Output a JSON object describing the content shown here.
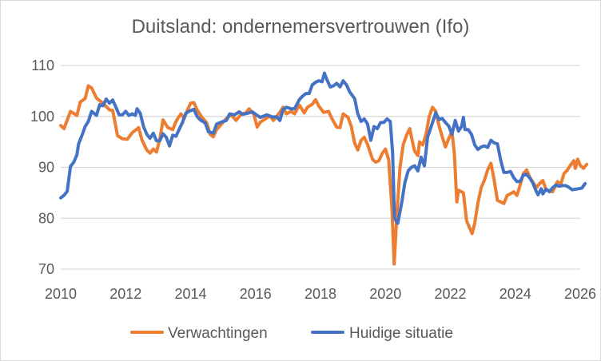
{
  "chart_data": {
    "type": "line",
    "title": "Duitsland: ondernemersvertrouwen (Ifo)",
    "xlabel": "",
    "ylabel": "",
    "xlim": [
      2010,
      2026
    ],
    "ylim": [
      70,
      110
    ],
    "x_ticks": [
      "2010",
      "2012",
      "2014",
      "2016",
      "2018",
      "2020",
      "2022",
      "2024",
      "2026"
    ],
    "y_ticks": [
      "70",
      "80",
      "90",
      "100",
      "110"
    ],
    "grid": "horizontal",
    "legend": "bottom",
    "series": [
      {
        "name": "Verwachtingen",
        "color": "#ED7D31",
        "points": [
          [
            2010.0,
            98.2
          ],
          [
            2010.1,
            97.6
          ],
          [
            2010.3,
            101.0
          ],
          [
            2010.5,
            100.2
          ],
          [
            2010.6,
            102.8
          ],
          [
            2010.75,
            103.5
          ],
          [
            2010.85,
            106.0
          ],
          [
            2010.95,
            105.6
          ],
          [
            2011.1,
            103.6
          ],
          [
            2011.3,
            102.6
          ],
          [
            2011.5,
            101.3
          ],
          [
            2011.6,
            101.2
          ],
          [
            2011.75,
            96.2
          ],
          [
            2011.9,
            95.6
          ],
          [
            2012.05,
            95.5
          ],
          [
            2012.2,
            96.8
          ],
          [
            2012.4,
            97.8
          ],
          [
            2012.5,
            95.4
          ],
          [
            2012.65,
            93.4
          ],
          [
            2012.75,
            92.8
          ],
          [
            2012.85,
            93.6
          ],
          [
            2012.95,
            93.0
          ],
          [
            2013.05,
            95.5
          ],
          [
            2013.15,
            99.3
          ],
          [
            2013.3,
            97.8
          ],
          [
            2013.45,
            97.4
          ],
          [
            2013.55,
            99.0
          ],
          [
            2013.7,
            100.5
          ],
          [
            2013.8,
            99.6
          ],
          [
            2013.9,
            101.2
          ],
          [
            2014.0,
            102.6
          ],
          [
            2014.1,
            102.7
          ],
          [
            2014.2,
            101.3
          ],
          [
            2014.35,
            99.8
          ],
          [
            2014.5,
            98.7
          ],
          [
            2014.6,
            96.5
          ],
          [
            2014.7,
            96.0
          ],
          [
            2014.8,
            97.4
          ],
          [
            2014.95,
            98.5
          ],
          [
            2015.1,
            99.6
          ],
          [
            2015.25,
            100.3
          ],
          [
            2015.4,
            99.2
          ],
          [
            2015.55,
            100.4
          ],
          [
            2015.7,
            100.7
          ],
          [
            2015.8,
            101.5
          ],
          [
            2015.95,
            100.4
          ],
          [
            2016.05,
            97.9
          ],
          [
            2016.15,
            98.9
          ],
          [
            2016.3,
            99.5
          ],
          [
            2016.45,
            100.1
          ],
          [
            2016.55,
            99.2
          ],
          [
            2016.7,
            100.4
          ],
          [
            2016.85,
            101.8
          ],
          [
            2016.95,
            100.5
          ],
          [
            2017.1,
            101.0
          ],
          [
            2017.2,
            100.5
          ],
          [
            2017.35,
            102.2
          ],
          [
            2017.5,
            100.7
          ],
          [
            2017.6,
            101.8
          ],
          [
            2017.75,
            102.4
          ],
          [
            2017.85,
            103.3
          ],
          [
            2017.95,
            102.0
          ],
          [
            2018.1,
            100.8
          ],
          [
            2018.25,
            101.0
          ],
          [
            2018.35,
            99.6
          ],
          [
            2018.5,
            97.9
          ],
          [
            2018.6,
            97.8
          ],
          [
            2018.7,
            100.5
          ],
          [
            2018.85,
            99.8
          ],
          [
            2018.95,
            98.0
          ],
          [
            2019.05,
            94.8
          ],
          [
            2019.15,
            93.4
          ],
          [
            2019.25,
            95.3
          ],
          [
            2019.35,
            95.9
          ],
          [
            2019.45,
            94.5
          ],
          [
            2019.6,
            91.6
          ],
          [
            2019.7,
            91.0
          ],
          [
            2019.8,
            91.3
          ],
          [
            2019.9,
            92.7
          ],
          [
            2020.0,
            93.6
          ],
          [
            2020.1,
            91.5
          ],
          [
            2020.2,
            82.0
          ],
          [
            2020.27,
            71.0
          ],
          [
            2020.35,
            80.5
          ],
          [
            2020.45,
            90.0
          ],
          [
            2020.55,
            94.5
          ],
          [
            2020.65,
            96.3
          ],
          [
            2020.75,
            97.6
          ],
          [
            2020.85,
            94.5
          ],
          [
            2020.9,
            93.2
          ],
          [
            2021.0,
            92.3
          ],
          [
            2021.05,
            95.0
          ],
          [
            2021.15,
            94.4
          ],
          [
            2021.25,
            96.5
          ],
          [
            2021.35,
            100.0
          ],
          [
            2021.45,
            101.8
          ],
          [
            2021.55,
            101.0
          ],
          [
            2021.65,
            98.2
          ],
          [
            2021.75,
            96.0
          ],
          [
            2021.85,
            94.0
          ],
          [
            2021.95,
            95.7
          ],
          [
            2022.05,
            97.0
          ],
          [
            2022.12,
            93.0
          ],
          [
            2022.2,
            83.2
          ],
          [
            2022.25,
            85.5
          ],
          [
            2022.4,
            85.0
          ],
          [
            2022.5,
            79.5
          ],
          [
            2022.6,
            78.0
          ],
          [
            2022.67,
            77.0
          ],
          [
            2022.75,
            79.0
          ],
          [
            2022.85,
            83.0
          ],
          [
            2022.95,
            86.0
          ],
          [
            2023.05,
            87.5
          ],
          [
            2023.15,
            89.5
          ],
          [
            2023.25,
            90.8
          ],
          [
            2023.35,
            87.5
          ],
          [
            2023.45,
            83.5
          ],
          [
            2023.55,
            83.2
          ],
          [
            2023.65,
            82.9
          ],
          [
            2023.75,
            84.5
          ],
          [
            2023.85,
            84.8
          ],
          [
            2023.95,
            85.2
          ],
          [
            2024.05,
            84.5
          ],
          [
            2024.15,
            86.5
          ],
          [
            2024.25,
            88.8
          ],
          [
            2024.35,
            89.5
          ],
          [
            2024.45,
            88.0
          ],
          [
            2024.55,
            87.0
          ],
          [
            2024.65,
            86.0
          ],
          [
            2024.75,
            86.8
          ],
          [
            2024.85,
            87.4
          ],
          [
            2024.95,
            85.6
          ],
          [
            2025.05,
            85.4
          ],
          [
            2025.15,
            85.2
          ],
          [
            2025.3,
            87.2
          ],
          [
            2025.4,
            86.6
          ],
          [
            2025.5,
            88.8
          ],
          [
            2025.6,
            89.4
          ],
          [
            2025.7,
            90.4
          ],
          [
            2025.8,
            91.3
          ],
          [
            2025.85,
            89.8
          ],
          [
            2025.92,
            91.6
          ],
          [
            2026.0,
            90.4
          ],
          [
            2026.1,
            89.8
          ],
          [
            2026.2,
            90.6
          ]
        ]
      },
      {
        "name": "Huidige situatie",
        "color": "#4472C4",
        "points": [
          [
            2010.0,
            84.0
          ],
          [
            2010.1,
            84.5
          ],
          [
            2010.2,
            85.3
          ],
          [
            2010.3,
            90.2
          ],
          [
            2010.4,
            91.0
          ],
          [
            2010.5,
            92.5
          ],
          [
            2010.55,
            94.6
          ],
          [
            2010.65,
            96.2
          ],
          [
            2010.75,
            98.0
          ],
          [
            2010.85,
            99.0
          ],
          [
            2010.95,
            101.0
          ],
          [
            2011.1,
            100.2
          ],
          [
            2011.2,
            102.3
          ],
          [
            2011.3,
            102.1
          ],
          [
            2011.4,
            103.4
          ],
          [
            2011.5,
            102.6
          ],
          [
            2011.6,
            103.2
          ],
          [
            2011.7,
            101.8
          ],
          [
            2011.8,
            100.3
          ],
          [
            2011.9,
            100.3
          ],
          [
            2012.0,
            101.0
          ],
          [
            2012.1,
            100.2
          ],
          [
            2012.2,
            100.5
          ],
          [
            2012.3,
            100.2
          ],
          [
            2012.35,
            101.5
          ],
          [
            2012.45,
            100.6
          ],
          [
            2012.55,
            98.0
          ],
          [
            2012.65,
            96.5
          ],
          [
            2012.75,
            95.7
          ],
          [
            2012.85,
            96.7
          ],
          [
            2012.95,
            95.2
          ],
          [
            2013.05,
            95.2
          ],
          [
            2013.15,
            96.6
          ],
          [
            2013.25,
            95.9
          ],
          [
            2013.35,
            94.2
          ],
          [
            2013.45,
            96.3
          ],
          [
            2013.55,
            96.1
          ],
          [
            2013.65,
            97.5
          ],
          [
            2013.75,
            98.8
          ],
          [
            2013.85,
            100.6
          ],
          [
            2013.95,
            101.0
          ],
          [
            2014.1,
            101.4
          ],
          [
            2014.2,
            100.0
          ],
          [
            2014.3,
            99.3
          ],
          [
            2014.45,
            98.7
          ],
          [
            2014.55,
            97.0
          ],
          [
            2014.7,
            96.7
          ],
          [
            2014.8,
            98.5
          ],
          [
            2014.95,
            98.9
          ],
          [
            2015.1,
            99.2
          ],
          [
            2015.2,
            100.5
          ],
          [
            2015.35,
            100.3
          ],
          [
            2015.5,
            100.9
          ],
          [
            2015.6,
            100.4
          ],
          [
            2015.75,
            100.6
          ],
          [
            2015.9,
            100.9
          ],
          [
            2016.05,
            100.2
          ],
          [
            2016.15,
            99.8
          ],
          [
            2016.35,
            100.3
          ],
          [
            2016.5,
            99.9
          ],
          [
            2016.65,
            99.9
          ],
          [
            2016.75,
            99.2
          ],
          [
            2016.85,
            101.4
          ],
          [
            2016.95,
            101.8
          ],
          [
            2017.1,
            101.5
          ],
          [
            2017.2,
            101.5
          ],
          [
            2017.35,
            103.3
          ],
          [
            2017.45,
            104.0
          ],
          [
            2017.55,
            104.5
          ],
          [
            2017.65,
            104.5
          ],
          [
            2017.75,
            106.2
          ],
          [
            2017.85,
            106.7
          ],
          [
            2017.95,
            107.0
          ],
          [
            2018.05,
            106.8
          ],
          [
            2018.12,
            108.5
          ],
          [
            2018.2,
            107.2
          ],
          [
            2018.3,
            105.8
          ],
          [
            2018.4,
            106.0
          ],
          [
            2018.5,
            106.5
          ],
          [
            2018.6,
            105.8
          ],
          [
            2018.7,
            107.0
          ],
          [
            2018.8,
            106.2
          ],
          [
            2018.9,
            104.8
          ],
          [
            2019.05,
            103.5
          ],
          [
            2019.15,
            100.5
          ],
          [
            2019.25,
            99.0
          ],
          [
            2019.35,
            99.5
          ],
          [
            2019.45,
            98.5
          ],
          [
            2019.55,
            95.3
          ],
          [
            2019.65,
            98.0
          ],
          [
            2019.75,
            97.6
          ],
          [
            2019.85,
            98.8
          ],
          [
            2019.95,
            98.8
          ],
          [
            2020.05,
            99.5
          ],
          [
            2020.15,
            99.0
          ],
          [
            2020.22,
            93.0
          ],
          [
            2020.28,
            80.0
          ],
          [
            2020.38,
            79.0
          ],
          [
            2020.5,
            83.0
          ],
          [
            2020.6,
            87.0
          ],
          [
            2020.7,
            89.3
          ],
          [
            2020.8,
            90.0
          ],
          [
            2020.9,
            90.3
          ],
          [
            2021.0,
            89.3
          ],
          [
            2021.1,
            92.0
          ],
          [
            2021.2,
            90.3
          ],
          [
            2021.3,
            96.0
          ],
          [
            2021.4,
            97.8
          ],
          [
            2021.55,
            100.7
          ],
          [
            2021.65,
            99.4
          ],
          [
            2021.75,
            99.6
          ],
          [
            2021.85,
            98.8
          ],
          [
            2021.95,
            98.1
          ],
          [
            2022.05,
            96.5
          ],
          [
            2022.15,
            99.2
          ],
          [
            2022.25,
            97.1
          ],
          [
            2022.35,
            98.1
          ],
          [
            2022.4,
            99.8
          ],
          [
            2022.45,
            97.4
          ],
          [
            2022.55,
            97.4
          ],
          [
            2022.65,
            96.5
          ],
          [
            2022.75,
            94.4
          ],
          [
            2022.85,
            93.5
          ],
          [
            2022.95,
            94.0
          ],
          [
            2023.05,
            94.2
          ],
          [
            2023.15,
            93.9
          ],
          [
            2023.25,
            95.3
          ],
          [
            2023.35,
            94.8
          ],
          [
            2023.45,
            94.6
          ],
          [
            2023.55,
            91.4
          ],
          [
            2023.65,
            89.0
          ],
          [
            2023.75,
            89.0
          ],
          [
            2023.85,
            89.2
          ],
          [
            2023.95,
            88.0
          ],
          [
            2024.05,
            87.2
          ],
          [
            2024.15,
            87.2
          ],
          [
            2024.25,
            88.5
          ],
          [
            2024.35,
            88.6
          ],
          [
            2024.45,
            87.9
          ],
          [
            2024.55,
            86.8
          ],
          [
            2024.65,
            85.2
          ],
          [
            2024.7,
            84.6
          ],
          [
            2024.8,
            85.8
          ],
          [
            2024.85,
            84.8
          ],
          [
            2024.95,
            85.7
          ],
          [
            2025.05,
            85.2
          ],
          [
            2025.15,
            86.0
          ],
          [
            2025.25,
            86.5
          ],
          [
            2025.35,
            86.3
          ],
          [
            2025.45,
            86.4
          ],
          [
            2025.55,
            86.4
          ],
          [
            2025.65,
            86.1
          ],
          [
            2025.75,
            85.6
          ],
          [
            2025.85,
            85.7
          ],
          [
            2025.95,
            85.8
          ],
          [
            2026.05,
            85.9
          ],
          [
            2026.15,
            86.8
          ]
        ]
      }
    ]
  }
}
